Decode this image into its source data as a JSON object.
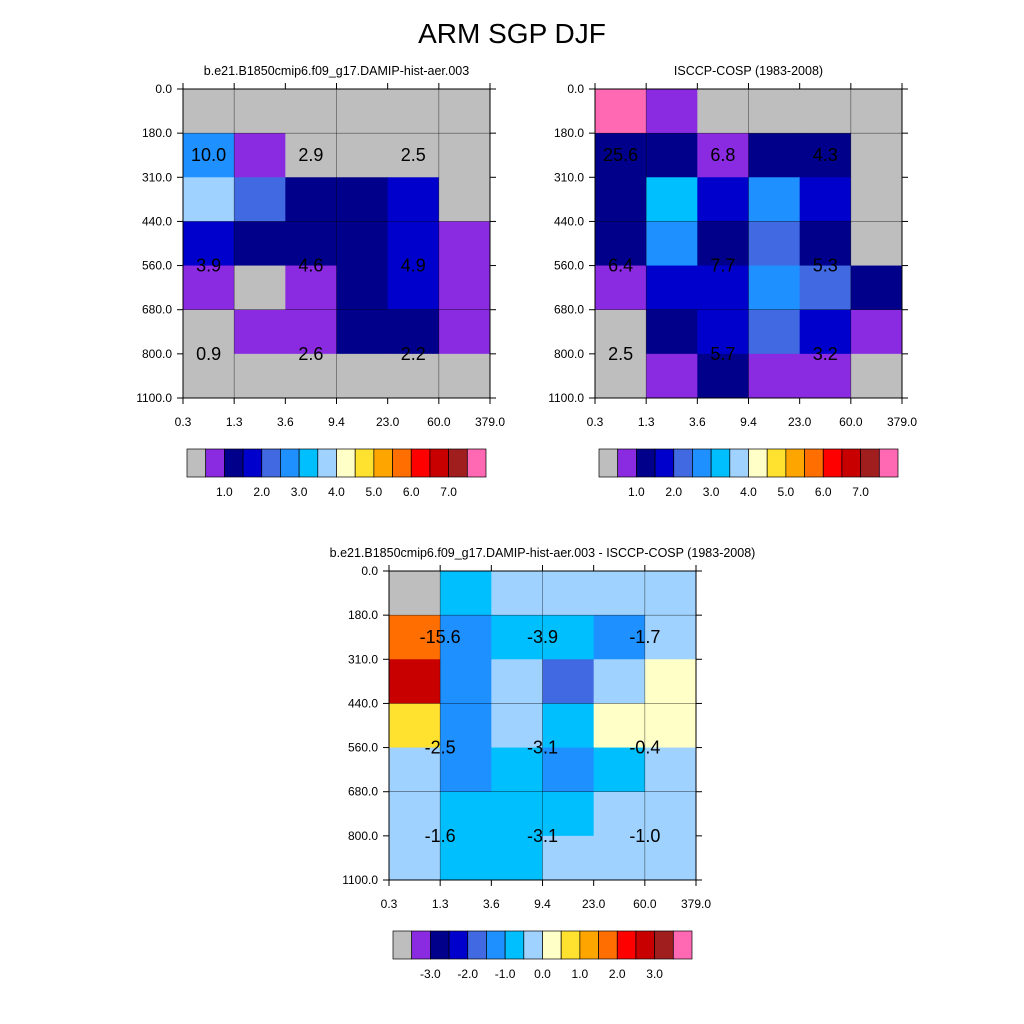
{
  "title": "ARM SGP DJF",
  "palette": [
    "#bebebe",
    "#8a2be2",
    "#00008b",
    "#0000cd",
    "#4169e1",
    "#1e90ff",
    "#00bfff",
    "#a0d2ff",
    "#ffffc8",
    "#ffe130",
    "#ffa500",
    "#ff6e00",
    "#ff0000",
    "#c80000",
    "#a01e1e",
    "#ff69b4"
  ],
  "chart_data": [
    {
      "type": "heatmap",
      "title": "b.e21.B1850cmip6.f09_g17.DAMIP-hist-aer.003",
      "x_tick_labels": [
        "0.3",
        "1.3",
        "3.6",
        "9.4",
        "23.0",
        "60.0",
        "379.0"
      ],
      "y_tick_labels": [
        "0.0",
        "180.0",
        "310.0",
        "440.0",
        "560.0",
        "680.0",
        "800.0",
        "1100.0"
      ],
      "cell_color_index": [
        [
          0,
          0,
          0,
          0,
          0,
          0
        ],
        [
          5,
          1,
          0,
          0,
          0,
          0
        ],
        [
          7,
          4,
          2,
          2,
          3,
          0
        ],
        [
          3,
          2,
          2,
          2,
          3,
          1
        ],
        [
          1,
          0,
          1,
          2,
          3,
          1
        ],
        [
          0,
          1,
          1,
          2,
          2,
          1
        ],
        [
          0,
          0,
          0,
          0,
          0,
          0
        ]
      ],
      "annotations": [
        {
          "col": 0.5,
          "row": 1.5,
          "label": "10.0"
        },
        {
          "col": 2.5,
          "row": 1.5,
          "label": "2.9"
        },
        {
          "col": 4.5,
          "row": 1.5,
          "label": "2.5"
        },
        {
          "col": 0.5,
          "row": 4.0,
          "label": "3.9"
        },
        {
          "col": 2.5,
          "row": 4.0,
          "label": "4.6"
        },
        {
          "col": 4.5,
          "row": 4.0,
          "label": "4.9"
        },
        {
          "col": 0.5,
          "row": 6.0,
          "label": "0.9"
        },
        {
          "col": 2.5,
          "row": 6.0,
          "label": "2.6"
        },
        {
          "col": 4.5,
          "row": 6.0,
          "label": "2.2"
        }
      ],
      "colorbar_labels": [
        "1.0",
        "2.0",
        "3.0",
        "4.0",
        "5.0",
        "6.0",
        "7.0"
      ]
    },
    {
      "type": "heatmap",
      "title": "ISCCP-COSP (1983-2008)",
      "x_tick_labels": [
        "0.3",
        "1.3",
        "3.6",
        "9.4",
        "23.0",
        "60.0",
        "379.0"
      ],
      "y_tick_labels": [
        "0.0",
        "180.0",
        "310.0",
        "440.0",
        "560.0",
        "680.0",
        "800.0",
        "1100.0"
      ],
      "cell_color_index": [
        [
          15,
          1,
          0,
          0,
          0,
          0
        ],
        [
          2,
          2,
          1,
          2,
          2,
          0
        ],
        [
          2,
          6,
          3,
          5,
          3,
          0
        ],
        [
          2,
          5,
          2,
          4,
          2,
          0
        ],
        [
          1,
          3,
          3,
          5,
          4,
          2
        ],
        [
          0,
          2,
          3,
          4,
          3,
          1
        ],
        [
          0,
          1,
          2,
          1,
          1,
          0
        ]
      ],
      "annotations": [
        {
          "col": 0.5,
          "row": 1.5,
          "label": "25.6"
        },
        {
          "col": 2.5,
          "row": 1.5,
          "label": "6.8"
        },
        {
          "col": 4.5,
          "row": 1.5,
          "label": "4.3"
        },
        {
          "col": 0.5,
          "row": 4.0,
          "label": "6.4"
        },
        {
          "col": 2.5,
          "row": 4.0,
          "label": "7.7"
        },
        {
          "col": 4.5,
          "row": 4.0,
          "label": "5.3"
        },
        {
          "col": 0.5,
          "row": 6.0,
          "label": "2.5"
        },
        {
          "col": 2.5,
          "row": 6.0,
          "label": "5.7"
        },
        {
          "col": 4.5,
          "row": 6.0,
          "label": "3.2"
        }
      ],
      "colorbar_labels": [
        "1.0",
        "2.0",
        "3.0",
        "4.0",
        "5.0",
        "6.0",
        "7.0"
      ]
    },
    {
      "type": "heatmap",
      "title": "b.e21.B1850cmip6.f09_g17.DAMIP-hist-aer.003 - ISCCP-COSP (1983-2008)",
      "x_tick_labels": [
        "0.3",
        "1.3",
        "3.6",
        "9.4",
        "23.0",
        "60.0",
        "379.0"
      ],
      "y_tick_labels": [
        "0.0",
        "180.0",
        "310.0",
        "440.0",
        "560.0",
        "680.0",
        "800.0",
        "1100.0"
      ],
      "cell_color_index": [
        [
          0,
          6,
          7,
          7,
          7,
          7
        ],
        [
          11,
          5,
          6,
          6,
          5,
          7
        ],
        [
          13,
          5,
          7,
          4,
          7,
          8
        ],
        [
          9,
          5,
          7,
          6,
          8,
          8
        ],
        [
          7,
          5,
          6,
          5,
          6,
          7
        ],
        [
          7,
          6,
          6,
          6,
          7,
          7
        ],
        [
          7,
          6,
          6,
          7,
          7,
          7
        ]
      ],
      "annotations": [
        {
          "col": 1.0,
          "row": 1.5,
          "label": "-15.6"
        },
        {
          "col": 3.0,
          "row": 1.5,
          "label": "-3.9"
        },
        {
          "col": 5.0,
          "row": 1.5,
          "label": "-1.7"
        },
        {
          "col": 1.0,
          "row": 4.0,
          "label": "-2.5"
        },
        {
          "col": 3.0,
          "row": 4.0,
          "label": "-3.1"
        },
        {
          "col": 5.0,
          "row": 4.0,
          "label": "-0.4"
        },
        {
          "col": 1.0,
          "row": 6.0,
          "label": "-1.6"
        },
        {
          "col": 3.0,
          "row": 6.0,
          "label": "-3.1"
        },
        {
          "col": 5.0,
          "row": 6.0,
          "label": "-1.0"
        }
      ],
      "colorbar_labels": [
        "-3.0",
        "-2.0",
        "-1.0",
        "0.0",
        "1.0",
        "2.0",
        "3.0"
      ]
    }
  ]
}
